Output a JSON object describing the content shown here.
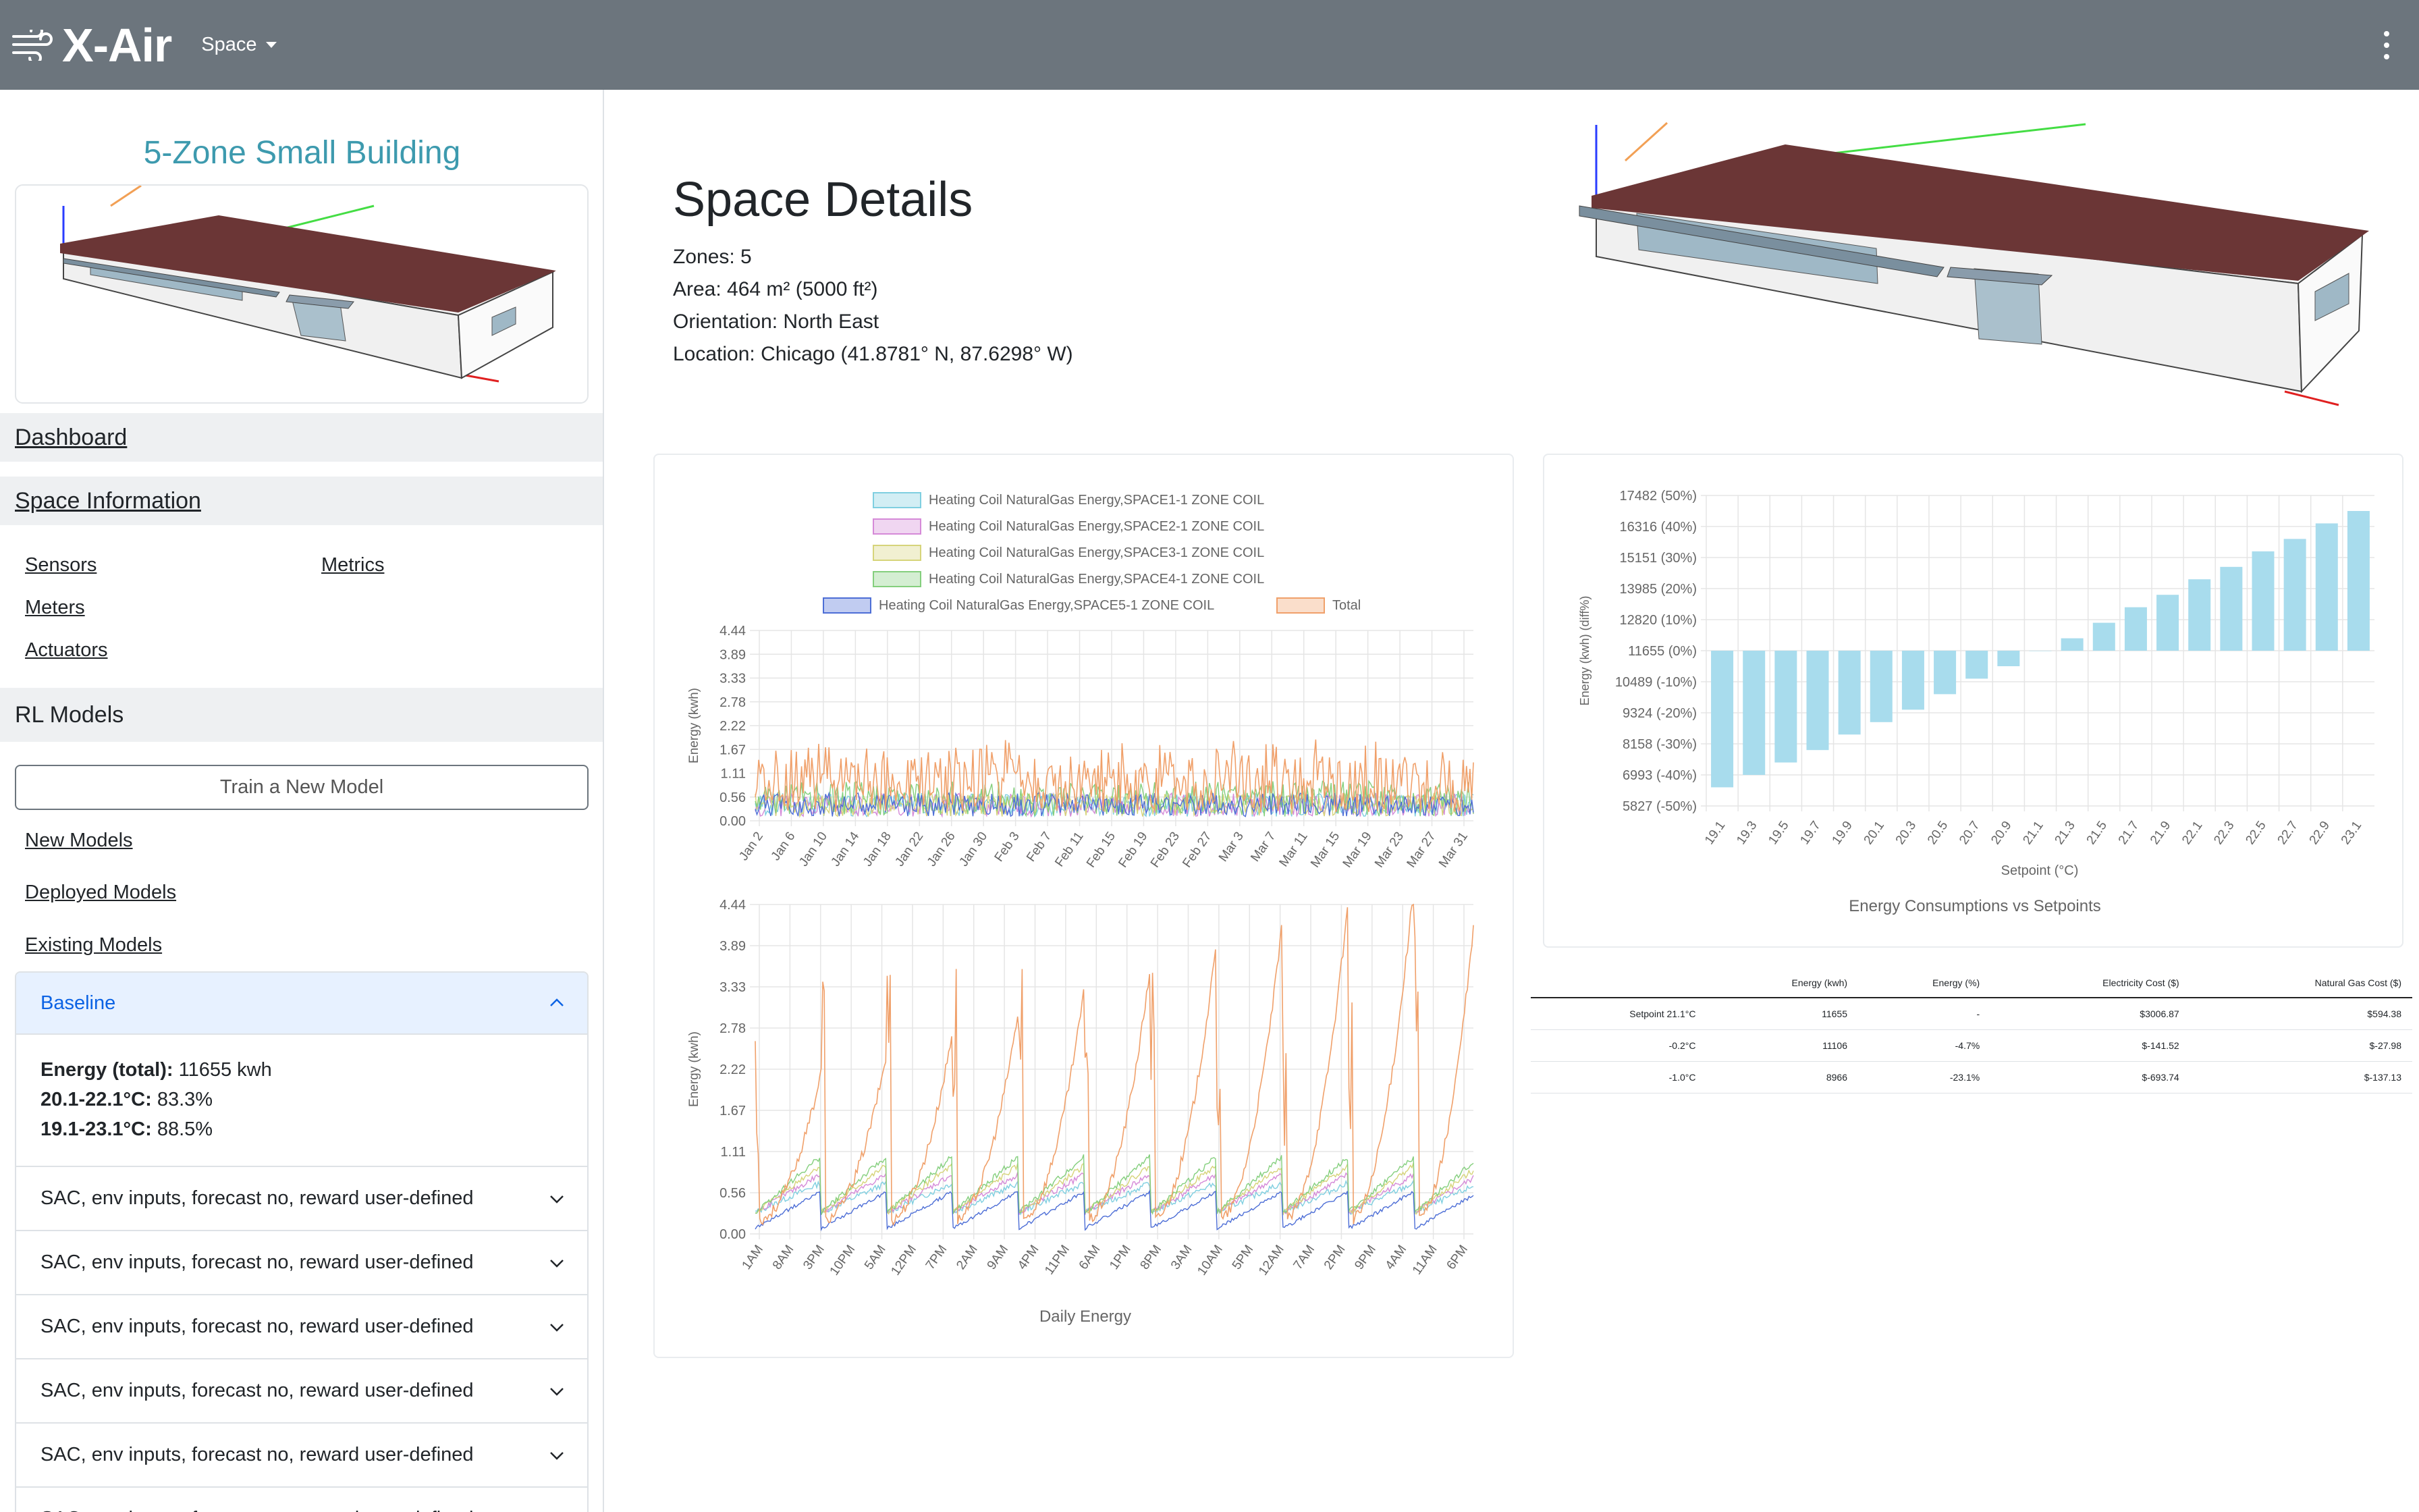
{
  "nav": {
    "brand": "X-Air",
    "space_menu": "Space"
  },
  "sidebar": {
    "building_title": "5-Zone Small Building",
    "dashboard": "Dashboard",
    "space_information": "Space Information",
    "links": {
      "sensors": "Sensors",
      "metrics": "Metrics",
      "meters": "Meters",
      "actuators": "Actuators"
    },
    "rl_models": "RL Models",
    "train_button": "Train a New Model",
    "model_links": {
      "new": "New Models",
      "deployed": "Deployed Models",
      "existing": "Existing Models"
    },
    "baseline": {
      "title": "Baseline",
      "energy_label": "Energy (total):",
      "energy_value": "11655 kwh",
      "range1_label": "20.1-22.1°C:",
      "range1_value": "83.3%",
      "range2_label": "19.1-23.1°C:",
      "range2_value": "88.5%"
    },
    "models": [
      "SAC, env inputs, forecast no, reward user-defined",
      "SAC, env inputs, forecast no, reward user-defined",
      "SAC, env inputs, forecast no, reward user-defined",
      "SAC, env inputs, forecast no, reward user-defined",
      "SAC, env inputs, forecast no, reward user-defined",
      "SAC, env inputs, forecast no, reward user-defined"
    ]
  },
  "space_details": {
    "title": "Space Details",
    "zones": "Zones: 5",
    "area": "Area: 464 m² (5000 ft²)",
    "orientation": "Orientation: North East",
    "location": "Location: Chicago (41.8781° N, 87.6298° W)"
  },
  "colors": {
    "navbar": "#6c757d",
    "accent_title": "#3d9aae",
    "roof": "#6b3636",
    "bar": "#a8dced",
    "total": "#f0a06a"
  },
  "line_chart": {
    "legend": [
      {
        "label": "Heating Coil NaturalGas Energy,SPACE1-1 ZONE COIL",
        "color": "#7fcfe0"
      },
      {
        "label": "Heating Coil NaturalGas Energy,SPACE2-1 ZONE COIL",
        "color": "#d58ad8"
      },
      {
        "label": "Heating Coil NaturalGas Energy,SPACE3-1 ZONE COIL",
        "color": "#d6d47a"
      },
      {
        "label": "Heating Coil NaturalGas Energy,SPACE4-1 ZONE COIL",
        "color": "#84cf7d"
      },
      {
        "label": "Heating Coil NaturalGas Energy,SPACE5-1 ZONE COIL",
        "color": "#4d6ed6"
      },
      {
        "label": "Total",
        "color": "#f0a06a"
      }
    ],
    "ylabel": "Energy (kwh)",
    "yticks": [
      "4.44",
      "3.89",
      "3.33",
      "2.78",
      "2.22",
      "1.67",
      "1.11",
      "0.56",
      "0.00"
    ],
    "top_xticks": [
      "Jan 2",
      "Jan 6",
      "Jan 10",
      "Jan 14",
      "Jan 18",
      "Jan 22",
      "Jan 26",
      "Jan 30",
      "Feb 3",
      "Feb 7",
      "Feb 11",
      "Feb 15",
      "Feb 19",
      "Feb 23",
      "Feb 27",
      "Mar 3",
      "Mar 7",
      "Mar 11",
      "Mar 15",
      "Mar 19",
      "Mar 23",
      "Mar 27",
      "Mar 31"
    ],
    "bottom_xticks": [
      "1AM",
      "8AM",
      "3PM",
      "10PM",
      "5AM",
      "12PM",
      "7PM",
      "2AM",
      "9AM",
      "4PM",
      "11PM",
      "6AM",
      "1PM",
      "8PM",
      "3AM",
      "10AM",
      "5PM",
      "12AM",
      "7AM",
      "2PM",
      "9PM",
      "4AM",
      "11AM",
      "6PM"
    ],
    "bottom_title": "Daily Energy"
  },
  "chart_data": {
    "type": "bar",
    "title": "Energy Consumptions vs Setpoints",
    "xlabel": "Setpoint (°C)",
    "ylabel": "Energy (kwh) (diff%)",
    "categories": [
      "19.1",
      "19.3",
      "19.5",
      "19.7",
      "19.9",
      "20.1",
      "20.3",
      "20.5",
      "20.7",
      "20.9",
      "21.1",
      "21.3",
      "21.5",
      "21.7",
      "21.9",
      "22.1",
      "22.3",
      "22.5",
      "22.7",
      "22.9",
      "23.1"
    ],
    "values": [
      -44,
      -40,
      -36,
      -32,
      -27,
      -23,
      -19,
      -14,
      -9,
      -5,
      0,
      4,
      9,
      14,
      18,
      23,
      27,
      32,
      36,
      41,
      45
    ],
    "yticks": [
      "17482 (50%)",
      "16316 (40%)",
      "15151 (30%)",
      "13985 (20%)",
      "12820 (10%)",
      "11655 (0%)",
      "10489 (-10%)",
      "9324 (-20%)",
      "8158 (-30%)",
      "6993 (-40%)",
      "5827 (-50%)"
    ],
    "ylim": [
      -50,
      50
    ]
  },
  "cost_table": {
    "headers": [
      "",
      "Energy (kwh)",
      "Energy (%)",
      "Electricity Cost ($)",
      "Natural Gas Cost ($)"
    ],
    "rows": [
      [
        "Setpoint 21.1°C",
        "11655",
        "-",
        "$3006.87",
        "$594.38"
      ],
      [
        "-0.2°C",
        "11106",
        "-4.7%",
        "$-141.52",
        "$-27.98"
      ],
      [
        "-1.0°C",
        "8966",
        "-23.1%",
        "$-693.74",
        "$-137.13"
      ]
    ]
  }
}
